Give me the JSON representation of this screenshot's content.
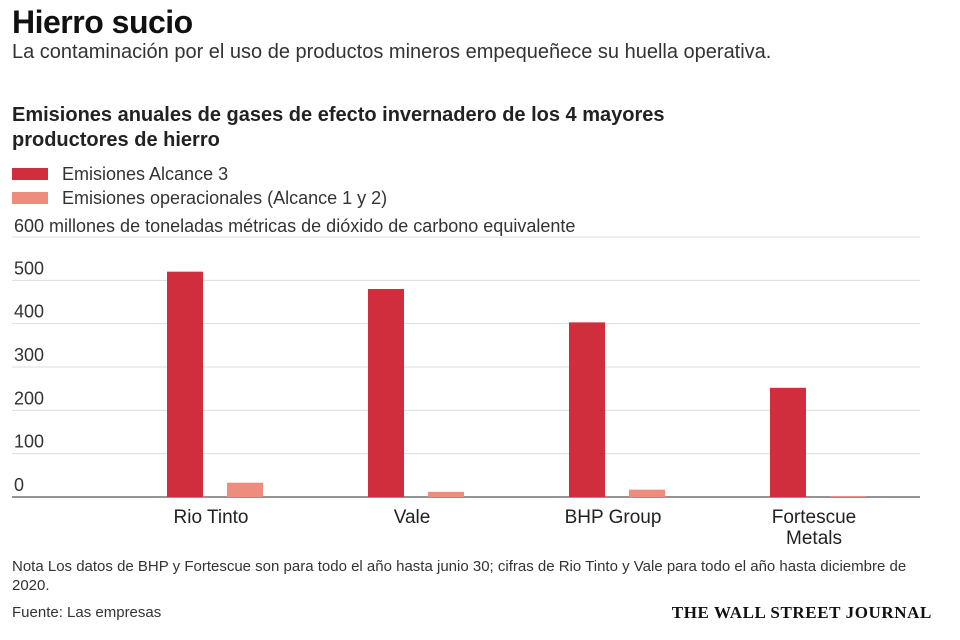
{
  "header": {
    "title": "Hierro sucio",
    "subtitle": "La contaminación por el uso de productos mineros empequeñece su huella operativa."
  },
  "chart_data": {
    "type": "bar",
    "title": "Emisiones anuales de gases de efecto invernadero de los 4 mayores productores de hierro",
    "ylabel": "600 millones de toneladas métricas de dióxido de carbono equivalente",
    "xlabel": "",
    "ylim": [
      0,
      600
    ],
    "yticks": [
      0,
      100,
      200,
      300,
      400,
      500
    ],
    "grid": true,
    "legend_position": "top-left",
    "categories": [
      "Rio Tinto",
      "Vale",
      "BHP Group",
      "Fortescue Metals"
    ],
    "category_labels": [
      [
        "Rio Tinto"
      ],
      [
        "Vale"
      ],
      [
        "BHP Group"
      ],
      [
        "Fortescue",
        "Metals"
      ]
    ],
    "series": [
      {
        "name": "Emisiones Alcance 3",
        "color": "#d02e3c",
        "values": [
          520,
          480,
          403,
          252
        ]
      },
      {
        "name": "Emisiones operacionales (Alcance 1 y 2)",
        "color": "#ee8c7e",
        "values": [
          33,
          12,
          17,
          2
        ]
      }
    ]
  },
  "footer": {
    "note": "Nota Los datos de BHP y Fortescue son para todo el año hasta junio 30; cifras de Rio Tinto y Vale para todo el año hasta diciembre de 2020.",
    "source": "Fuente: Las empresas",
    "publisher": "THE WALL STREET JOURNAL"
  }
}
